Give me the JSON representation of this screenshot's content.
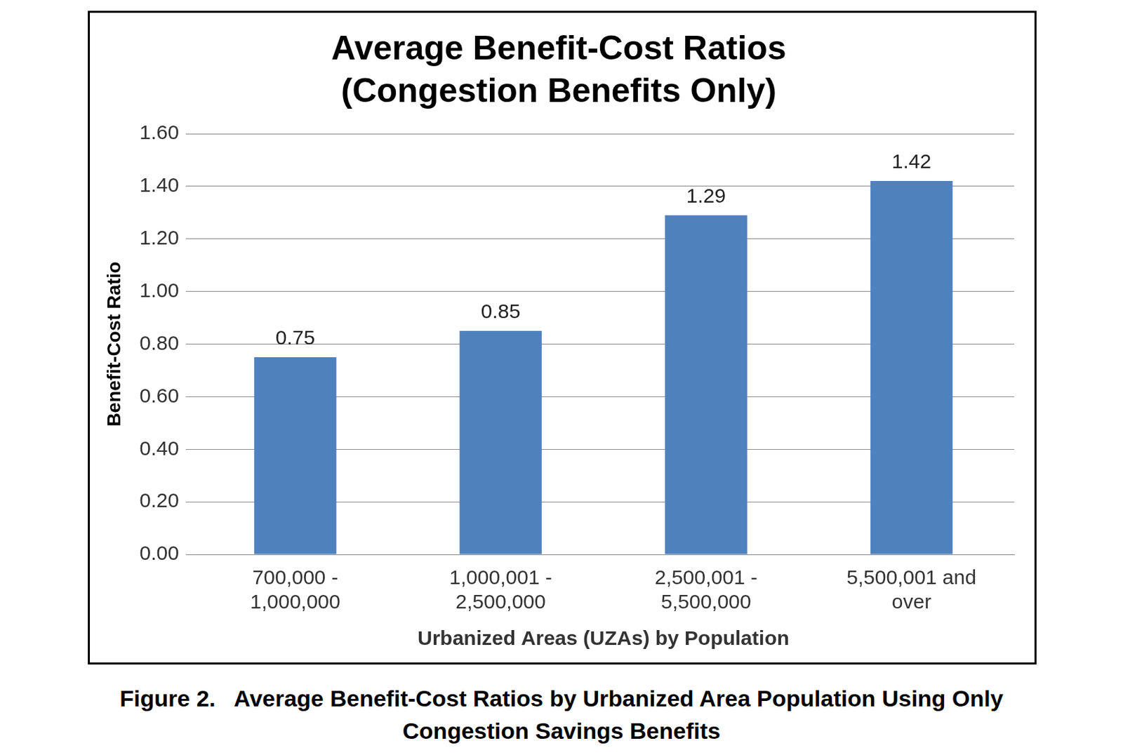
{
  "chart_data": {
    "type": "bar",
    "title": [
      "Average Benefit-Cost Ratios",
      "(Congestion Benefits Only)"
    ],
    "caption": [
      "Figure 2.   Average Benefit-Cost Ratios by Urbanized Area Population Using Only",
      "Congestion Savings Benefits"
    ],
    "x_label": "Urbanized Areas (UZAs) by Population",
    "y_label": "Benefit-Cost Ratio",
    "categories": [
      [
        "700,000 -",
        "1,000,000"
      ],
      [
        "1,000,001 -",
        "2,500,000"
      ],
      [
        "2,500,001 -",
        "5,500,000"
      ],
      [
        "5,500,001 and",
        "over"
      ]
    ],
    "values": [
      0.75,
      0.85,
      1.29,
      1.42
    ],
    "color": "#4f81bd",
    "ylim": [
      0,
      1.6
    ],
    "yticks": [
      {
        "value": 0,
        "label": "0.00"
      },
      {
        "value": 0.2,
        "label": "0.20"
      },
      {
        "value": 0.4,
        "label": "0.40"
      },
      {
        "value": 0.6,
        "label": "0.60"
      },
      {
        "value": 0.8,
        "label": "0.80"
      },
      {
        "value": 1.0,
        "label": "1.00"
      },
      {
        "value": 1.2,
        "label": "1.20"
      },
      {
        "value": 1.4,
        "label": "1.40"
      },
      {
        "value": 1.6,
        "label": "1.60"
      }
    ],
    "grid": true,
    "data_labels": true
  }
}
